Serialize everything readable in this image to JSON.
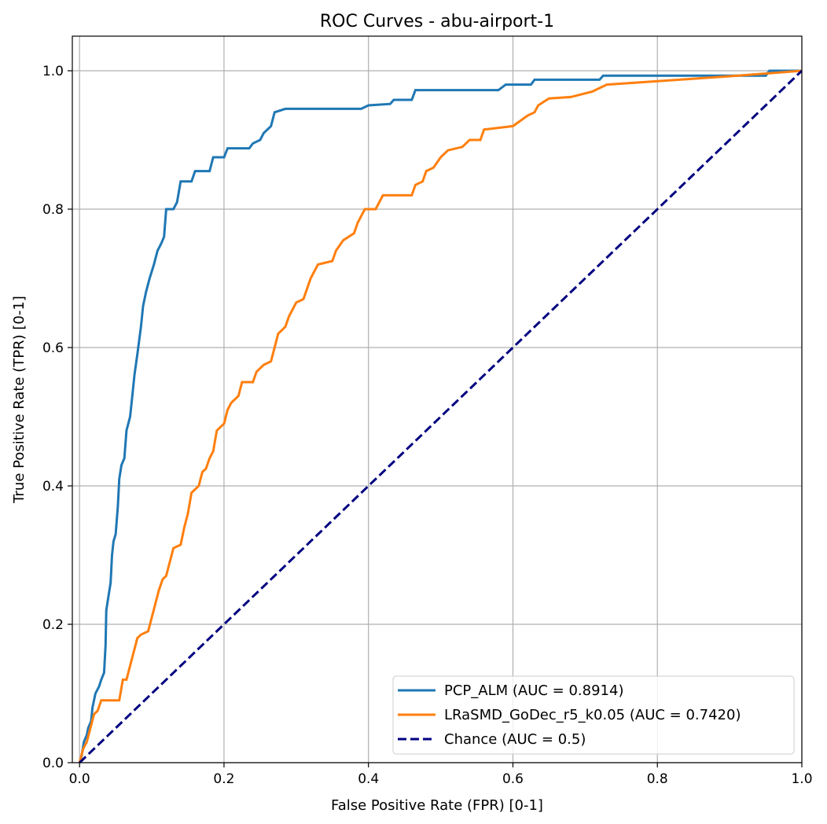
{
  "chart_data": {
    "type": "line",
    "title": "ROC Curves - abu-airport-1",
    "xlabel": "False Positive Rate (FPR) [0-1]",
    "ylabel": "True Positive Rate (TPR) [0-1]",
    "xlim": [
      -0.01,
      1.0
    ],
    "ylim": [
      0.0,
      1.05
    ],
    "grid": true,
    "legend_position": "lower-right",
    "xticks": [
      {
        "value": 0.0,
        "label": "0.0"
      },
      {
        "value": 0.2,
        "label": "0.2"
      },
      {
        "value": 0.4,
        "label": "0.4"
      },
      {
        "value": 0.6,
        "label": "0.6"
      },
      {
        "value": 0.8,
        "label": "0.8"
      },
      {
        "value": 1.0,
        "label": "1.0"
      }
    ],
    "yticks": [
      {
        "value": 0.0,
        "label": "0.0"
      },
      {
        "value": 0.2,
        "label": "0.2"
      },
      {
        "value": 0.4,
        "label": "0.4"
      },
      {
        "value": 0.6,
        "label": "0.6"
      },
      {
        "value": 0.8,
        "label": "0.8"
      },
      {
        "value": 1.0,
        "label": "1.0"
      }
    ],
    "series": [
      {
        "name": "PCP_ALM (AUC = 0.8914)",
        "color": "#1f77b4",
        "dash": "solid",
        "points": [
          [
            0.0,
            0.0
          ],
          [
            0.003,
            0.01
          ],
          [
            0.006,
            0.03
          ],
          [
            0.01,
            0.04
          ],
          [
            0.012,
            0.05
          ],
          [
            0.016,
            0.06
          ],
          [
            0.018,
            0.08
          ],
          [
            0.022,
            0.1
          ],
          [
            0.027,
            0.11
          ],
          [
            0.03,
            0.12
          ],
          [
            0.034,
            0.13
          ],
          [
            0.036,
            0.17
          ],
          [
            0.037,
            0.22
          ],
          [
            0.04,
            0.24
          ],
          [
            0.043,
            0.26
          ],
          [
            0.045,
            0.3
          ],
          [
            0.047,
            0.32
          ],
          [
            0.05,
            0.33
          ],
          [
            0.053,
            0.37
          ],
          [
            0.055,
            0.41
          ],
          [
            0.058,
            0.43
          ],
          [
            0.062,
            0.44
          ],
          [
            0.065,
            0.48
          ],
          [
            0.07,
            0.5
          ],
          [
            0.073,
            0.53
          ],
          [
            0.076,
            0.56
          ],
          [
            0.08,
            0.59
          ],
          [
            0.085,
            0.63
          ],
          [
            0.088,
            0.66
          ],
          [
            0.092,
            0.68
          ],
          [
            0.097,
            0.7
          ],
          [
            0.103,
            0.72
          ],
          [
            0.108,
            0.74
          ],
          [
            0.113,
            0.75
          ],
          [
            0.117,
            0.76
          ],
          [
            0.12,
            0.8
          ],
          [
            0.13,
            0.8
          ],
          [
            0.135,
            0.81
          ],
          [
            0.14,
            0.84
          ],
          [
            0.155,
            0.84
          ],
          [
            0.16,
            0.855
          ],
          [
            0.18,
            0.855
          ],
          [
            0.185,
            0.875
          ],
          [
            0.2,
            0.875
          ],
          [
            0.205,
            0.888
          ],
          [
            0.235,
            0.888
          ],
          [
            0.24,
            0.895
          ],
          [
            0.25,
            0.9
          ],
          [
            0.255,
            0.91
          ],
          [
            0.265,
            0.92
          ],
          [
            0.27,
            0.94
          ],
          [
            0.285,
            0.945
          ],
          [
            0.39,
            0.945
          ],
          [
            0.4,
            0.95
          ],
          [
            0.43,
            0.952
          ],
          [
            0.435,
            0.958
          ],
          [
            0.46,
            0.958
          ],
          [
            0.465,
            0.972
          ],
          [
            0.58,
            0.972
          ],
          [
            0.59,
            0.98
          ],
          [
            0.625,
            0.98
          ],
          [
            0.63,
            0.987
          ],
          [
            0.72,
            0.987
          ],
          [
            0.725,
            0.993
          ],
          [
            0.95,
            0.993
          ],
          [
            0.955,
            1.0
          ],
          [
            1.0,
            1.0
          ]
        ]
      },
      {
        "name": "LRaSMD_GoDec_r5_k0.05 (AUC = 0.7420)",
        "color": "#ff7f0e",
        "dash": "solid",
        "points": [
          [
            0.0,
            0.0
          ],
          [
            0.005,
            0.02
          ],
          [
            0.01,
            0.03
          ],
          [
            0.015,
            0.05
          ],
          [
            0.02,
            0.07
          ],
          [
            0.025,
            0.075
          ],
          [
            0.03,
            0.09
          ],
          [
            0.055,
            0.09
          ],
          [
            0.06,
            0.12
          ],
          [
            0.065,
            0.12
          ],
          [
            0.07,
            0.14
          ],
          [
            0.075,
            0.16
          ],
          [
            0.08,
            0.18
          ],
          [
            0.085,
            0.185
          ],
          [
            0.095,
            0.19
          ],
          [
            0.1,
            0.21
          ],
          [
            0.11,
            0.25
          ],
          [
            0.115,
            0.265
          ],
          [
            0.12,
            0.27
          ],
          [
            0.125,
            0.29
          ],
          [
            0.13,
            0.31
          ],
          [
            0.14,
            0.315
          ],
          [
            0.145,
            0.34
          ],
          [
            0.15,
            0.36
          ],
          [
            0.155,
            0.39
          ],
          [
            0.165,
            0.4
          ],
          [
            0.17,
            0.42
          ],
          [
            0.175,
            0.425
          ],
          [
            0.18,
            0.44
          ],
          [
            0.185,
            0.45
          ],
          [
            0.19,
            0.48
          ],
          [
            0.2,
            0.49
          ],
          [
            0.205,
            0.51
          ],
          [
            0.21,
            0.52
          ],
          [
            0.22,
            0.53
          ],
          [
            0.225,
            0.55
          ],
          [
            0.24,
            0.55
          ],
          [
            0.245,
            0.565
          ],
          [
            0.255,
            0.575
          ],
          [
            0.265,
            0.58
          ],
          [
            0.27,
            0.6
          ],
          [
            0.275,
            0.62
          ],
          [
            0.285,
            0.63
          ],
          [
            0.29,
            0.645
          ],
          [
            0.3,
            0.665
          ],
          [
            0.31,
            0.67
          ],
          [
            0.32,
            0.7
          ],
          [
            0.33,
            0.72
          ],
          [
            0.35,
            0.725
          ],
          [
            0.355,
            0.74
          ],
          [
            0.365,
            0.755
          ],
          [
            0.38,
            0.765
          ],
          [
            0.385,
            0.78
          ],
          [
            0.395,
            0.8
          ],
          [
            0.41,
            0.8
          ],
          [
            0.415,
            0.81
          ],
          [
            0.42,
            0.82
          ],
          [
            0.46,
            0.82
          ],
          [
            0.465,
            0.835
          ],
          [
            0.475,
            0.84
          ],
          [
            0.48,
            0.855
          ],
          [
            0.49,
            0.86
          ],
          [
            0.5,
            0.875
          ],
          [
            0.51,
            0.885
          ],
          [
            0.53,
            0.89
          ],
          [
            0.54,
            0.9
          ],
          [
            0.555,
            0.9
          ],
          [
            0.56,
            0.915
          ],
          [
            0.6,
            0.92
          ],
          [
            0.62,
            0.935
          ],
          [
            0.63,
            0.94
          ],
          [
            0.635,
            0.95
          ],
          [
            0.65,
            0.96
          ],
          [
            0.68,
            0.962
          ],
          [
            0.71,
            0.97
          ],
          [
            0.72,
            0.975
          ],
          [
            0.73,
            0.98
          ],
          [
            0.8,
            0.985
          ],
          [
            0.9,
            0.992
          ],
          [
            1.0,
            1.0
          ]
        ]
      },
      {
        "name": "Chance (AUC = 0.5)",
        "color": "#000080",
        "dash": "dashed",
        "points": [
          [
            0.0,
            0.0
          ],
          [
            1.0,
            1.0
          ]
        ]
      }
    ]
  }
}
